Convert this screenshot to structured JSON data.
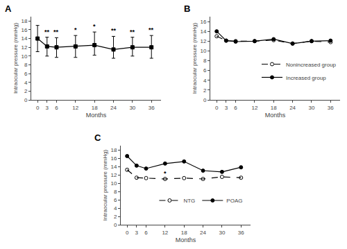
{
  "chart_data": [
    {
      "type": "line",
      "title": "A",
      "x": [
        0,
        3,
        6,
        12,
        18,
        24,
        30,
        36
      ],
      "xlim": [
        -2,
        39
      ],
      "xticks": [
        0,
        3,
        6,
        12,
        18,
        24,
        30,
        36
      ],
      "ylim": [
        0,
        19
      ],
      "yticks": [
        0,
        2,
        4,
        6,
        8,
        10,
        12,
        14,
        16,
        18
      ],
      "xlabel": "Months",
      "ylabel": "Intraocular pressure (mmHg)",
      "grid": false,
      "series": [
        {
          "values": [
            14.0,
            12.2,
            12.0,
            12.2,
            12.5,
            11.5,
            12.0,
            12.0
          ],
          "upper": [
            17.0,
            14.3,
            14.2,
            14.7,
            15.5,
            14.5,
            14.3,
            14.7
          ],
          "lower": [
            11.0,
            10.0,
            9.7,
            9.7,
            10.2,
            9.5,
            10.0,
            9.5
          ],
          "color": "#000000",
          "marker": "square",
          "line_style": "solid"
        }
      ],
      "annotations": [
        {
          "x": 3,
          "y": 14.3,
          "text": "**"
        },
        {
          "x": 6,
          "y": 14.2,
          "text": "**"
        },
        {
          "x": 12,
          "y": 14.7,
          "text": "*"
        },
        {
          "x": 18,
          "y": 15.5,
          "text": "*"
        },
        {
          "x": 24,
          "y": 14.5,
          "text": "**"
        },
        {
          "x": 30,
          "y": 14.3,
          "text": "**"
        },
        {
          "x": 36,
          "y": 14.7,
          "text": "**"
        }
      ]
    },
    {
      "type": "line",
      "title": "B",
      "x": [
        0,
        3,
        6,
        12,
        18,
        24,
        30,
        36
      ],
      "xlim": [
        -2,
        39
      ],
      "xticks": [
        0,
        3,
        6,
        12,
        18,
        24,
        30,
        36
      ],
      "ylim": [
        0,
        17
      ],
      "yticks": [
        0,
        2,
        4,
        6,
        8,
        10,
        12,
        14,
        16
      ],
      "xlabel": "Months",
      "ylabel": "Intraocular pressure (mmHg)",
      "grid": false,
      "legend": "center right",
      "series": [
        {
          "name": "Nonincreased group",
          "values": [
            13.0,
            12.1,
            12.0,
            12.0,
            12.2,
            11.5,
            12.0,
            11.8
          ],
          "color": "#000000",
          "marker": "open circle",
          "line_style": "dashed"
        },
        {
          "name": "Increased group",
          "values": [
            14.0,
            12.1,
            11.9,
            12.0,
            12.4,
            11.5,
            12.0,
            12.1
          ],
          "color": "#000000",
          "marker": "circle",
          "line_style": "solid"
        }
      ]
    },
    {
      "type": "line",
      "title": "C",
      "x": [
        0,
        3,
        6,
        12,
        18,
        24,
        30,
        36
      ],
      "xlim": [
        -2,
        39
      ],
      "xticks": [
        0,
        3,
        6,
        12,
        18,
        24,
        30,
        36
      ],
      "ylim": [
        0,
        19
      ],
      "yticks": [
        0,
        2,
        4,
        6,
        8,
        10,
        12,
        14,
        16,
        18
      ],
      "xlabel": "Months",
      "ylabel": "Intraocular pressure (mmHg)",
      "grid": false,
      "legend": "lower center",
      "series": [
        {
          "name": "NTG",
          "values": [
            13.2,
            11.3,
            11.2,
            11.0,
            11.2,
            11.0,
            11.5,
            11.3
          ],
          "color": "#000000",
          "marker": "open circle",
          "line_style": "dashed"
        },
        {
          "name": "POAG",
          "values": [
            16.5,
            14.2,
            13.5,
            14.7,
            15.2,
            13.0,
            12.7,
            13.8
          ],
          "color": "#000000",
          "marker": "circle",
          "line_style": "solid"
        }
      ],
      "annotations": [
        {
          "x": 12,
          "y": 11.0,
          "text": "*"
        }
      ]
    }
  ]
}
